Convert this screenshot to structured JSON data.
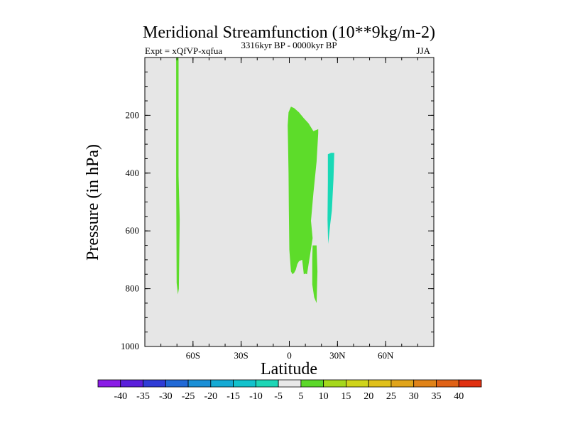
{
  "chart_data": {
    "type": "contour",
    "title": "Meridional Streamfunction (10**9kg/m-2)",
    "left_label": "Expt = xQfVP-xqfua",
    "center_label": "3316kyr BP - 0000kyr BP",
    "right_label": "JJA",
    "xlabel": "Latitude",
    "ylabel": "Pressure (in hPa)",
    "xlim": [
      -90,
      90
    ],
    "ylim": [
      1000,
      0
    ],
    "x_ticks": [
      {
        "value": -60,
        "label": "60S"
      },
      {
        "value": -30,
        "label": "30S"
      },
      {
        "value": 0,
        "label": "0"
      },
      {
        "value": 30,
        "label": "30N"
      },
      {
        "value": 60,
        "label": "60N"
      }
    ],
    "y_ticks": [
      {
        "value": 200,
        "label": "200"
      },
      {
        "value": 400,
        "label": "400"
      },
      {
        "value": 600,
        "label": "600"
      },
      {
        "value": 800,
        "label": "800"
      },
      {
        "value": 1000,
        "label": "1000"
      }
    ],
    "background_color": "#e6e6e6",
    "regions": [
      {
        "name": "thin-band-60s",
        "range": "5 to 10",
        "color": "#5ddc2a",
        "outline": [
          [
            -70.5,
            0
          ],
          [
            -69,
            0
          ],
          [
            -69,
            410
          ],
          [
            -68.3,
            560
          ],
          [
            -68.8,
            800
          ],
          [
            -69.4,
            820
          ],
          [
            -70.2,
            780
          ],
          [
            -70.5,
            420
          ]
        ]
      },
      {
        "name": "equatorial-cell-upper",
        "range": "5 to 10",
        "color": "#5ddc2a",
        "outline": [
          [
            -1,
            235
          ],
          [
            -0.5,
            190
          ],
          [
            1,
            170
          ],
          [
            3,
            175
          ],
          [
            6,
            190
          ],
          [
            9,
            210
          ],
          [
            12,
            228
          ],
          [
            15,
            255
          ],
          [
            18,
            248
          ],
          [
            18,
            262
          ],
          [
            17,
            360
          ],
          [
            15,
            470
          ],
          [
            13.5,
            565
          ],
          [
            14.5,
            625
          ],
          [
            13,
            680
          ],
          [
            11,
            750
          ],
          [
            10,
            748
          ],
          [
            9,
            750
          ],
          [
            8,
            700
          ],
          [
            6,
            705
          ],
          [
            5,
            715
          ],
          [
            4,
            735
          ],
          [
            3,
            745
          ],
          [
            2,
            750
          ],
          [
            1,
            740
          ],
          [
            0,
            665
          ],
          [
            -0.3,
            520
          ],
          [
            -0.5,
            400
          ],
          [
            -0.8,
            300
          ]
        ]
      },
      {
        "name": "equatorial-cell-lower",
        "range": "5 to 10",
        "color": "#5ddc2a",
        "outline": [
          [
            14.5,
            650
          ],
          [
            17,
            650
          ],
          [
            17.5,
            740
          ],
          [
            17,
            850
          ],
          [
            15.5,
            830
          ],
          [
            14.3,
            785
          ],
          [
            14.3,
            700
          ]
        ]
      },
      {
        "name": "northern-cell",
        "range": "-5 to 5 (shaded)",
        "color": "#19d9b6",
        "outline": [
          [
            24,
            335
          ],
          [
            26,
            330
          ],
          [
            28,
            330
          ],
          [
            27.5,
            420
          ],
          [
            26.5,
            530
          ],
          [
            25.5,
            575
          ],
          [
            24.2,
            645
          ],
          [
            23.8,
            560
          ],
          [
            24,
            430
          ]
        ]
      }
    ],
    "colorbar": {
      "labels": [
        "-40",
        "-35",
        "-30",
        "-25",
        "-20",
        "-15",
        "-10",
        "-5",
        "5",
        "10",
        "15",
        "20",
        "25",
        "30",
        "35",
        "40"
      ],
      "colors": [
        "#8a1ce6",
        "#5a1fdb",
        "#2f3cd6",
        "#2169d6",
        "#1a8fd6",
        "#15aad4",
        "#12c2cc",
        "#1dd6b6",
        "#e8e8e8",
        "#5cd82a",
        "#a5d81c",
        "#cfd41a",
        "#e0c01a",
        "#e0a41a",
        "#e08318",
        "#e06216",
        "#e03010"
      ]
    }
  }
}
